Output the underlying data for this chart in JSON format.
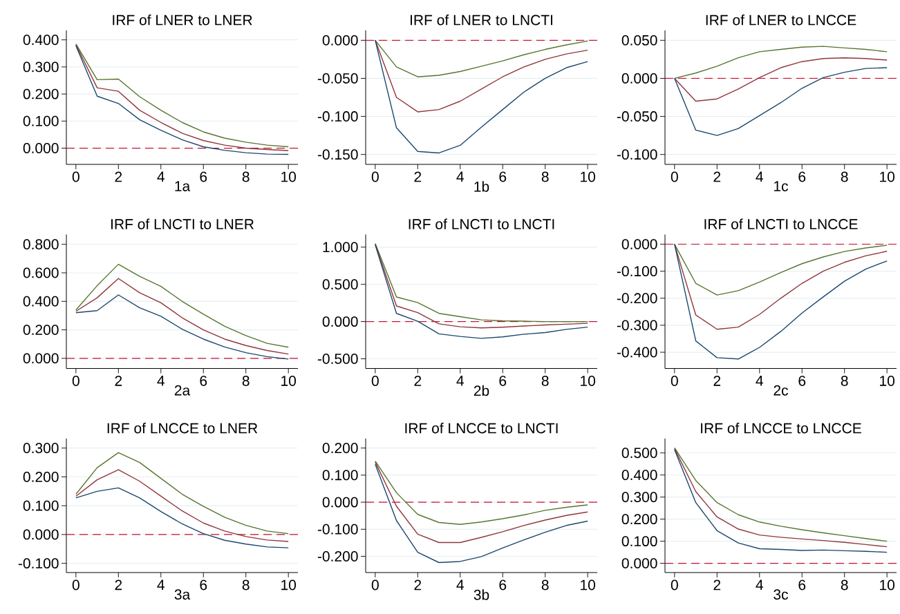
{
  "chart_data": [
    {
      "type": "line",
      "title": "IRF of LNER to LNER",
      "xlabel": "1a",
      "x": [
        0,
        1,
        2,
        3,
        4,
        5,
        6,
        7,
        8,
        9,
        10
      ],
      "xlim": [
        -0.45,
        10.45
      ],
      "xticks": [
        0,
        2,
        4,
        6,
        8,
        10
      ],
      "ylim": [
        -0.06,
        0.435
      ],
      "yticks": [
        {
          "value": 0,
          "label": "0.000"
        },
        {
          "value": 0.1,
          "label": "0.100"
        },
        {
          "value": 0.2,
          "label": "0.200"
        },
        {
          "value": 0.3,
          "label": "0.300"
        },
        {
          "value": 0.4,
          "label": "0.400"
        }
      ],
      "grid": "y",
      "marker": "none",
      "ref_lines": [
        {
          "axis": "y",
          "value": 0,
          "color": "#c8102e",
          "line_style": "dashed"
        }
      ],
      "series": [
        {
          "color": "#55752f",
          "values": [
            0.385,
            0.253,
            0.255,
            0.19,
            0.14,
            0.095,
            0.06,
            0.037,
            0.022,
            0.011,
            0.005
          ]
        },
        {
          "color": "#90353b",
          "values": [
            0.382,
            0.223,
            0.21,
            0.14,
            0.095,
            0.055,
            0.028,
            0.011,
            0.0,
            -0.005,
            -0.009
          ]
        },
        {
          "color": "#1a476f",
          "values": [
            0.378,
            0.192,
            0.165,
            0.105,
            0.066,
            0.031,
            0.005,
            -0.008,
            -0.017,
            -0.022,
            -0.023
          ]
        }
      ]
    },
    {
      "type": "line",
      "title": "IRF of LNER to LNCTI",
      "xlabel": "1b",
      "x": [
        0,
        1,
        2,
        3,
        4,
        5,
        6,
        7,
        8,
        9,
        10
      ],
      "xlim": [
        -0.45,
        10.45
      ],
      "xticks": [
        0,
        2,
        4,
        6,
        8,
        10
      ],
      "ylim": [
        -0.163,
        0.013
      ],
      "yticks": [
        {
          "value": -0.15,
          "label": "-0.150"
        },
        {
          "value": -0.1,
          "label": "-0.100"
        },
        {
          "value": -0.05,
          "label": "-0.050"
        },
        {
          "value": 0,
          "label": "0.000"
        }
      ],
      "grid": "y",
      "marker": "none",
      "ref_lines": [
        {
          "axis": "y",
          "value": 0,
          "color": "#c8102e",
          "line_style": "dashed"
        }
      ],
      "series": [
        {
          "color": "#55752f",
          "values": [
            0,
            -0.035,
            -0.048,
            -0.046,
            -0.041,
            -0.034,
            -0.027,
            -0.019,
            -0.012,
            -0.006,
            -0.001
          ]
        },
        {
          "color": "#90353b",
          "values": [
            0,
            -0.075,
            -0.094,
            -0.091,
            -0.08,
            -0.064,
            -0.048,
            -0.035,
            -0.025,
            -0.018,
            -0.013
          ]
        },
        {
          "color": "#1a476f",
          "values": [
            0,
            -0.115,
            -0.146,
            -0.148,
            -0.138,
            -0.114,
            -0.091,
            -0.068,
            -0.05,
            -0.036,
            -0.028
          ]
        }
      ]
    },
    {
      "type": "line",
      "title": "IRF of LNER to LNCCE",
      "xlabel": "1c",
      "x": [
        0,
        1,
        2,
        3,
        4,
        5,
        6,
        7,
        8,
        9,
        10
      ],
      "xlim": [
        -0.45,
        10.45
      ],
      "xticks": [
        0,
        2,
        4,
        6,
        8,
        10
      ],
      "ylim": [
        -0.113,
        0.063
      ],
      "yticks": [
        {
          "value": -0.1,
          "label": "-0.100"
        },
        {
          "value": -0.05,
          "label": "-0.050"
        },
        {
          "value": 0,
          "label": "0.000"
        },
        {
          "value": 0.05,
          "label": "0.050"
        }
      ],
      "grid": "y",
      "marker": "none",
      "ref_lines": [
        {
          "axis": "y",
          "value": 0,
          "color": "#c8102e",
          "line_style": "dashed"
        }
      ],
      "series": [
        {
          "color": "#55752f",
          "values": [
            0,
            0.007,
            0.016,
            0.027,
            0.035,
            0.038,
            0.041,
            0.042,
            0.04,
            0.038,
            0.035
          ]
        },
        {
          "color": "#90353b",
          "values": [
            0,
            -0.03,
            -0.027,
            -0.014,
            0.001,
            0.014,
            0.022,
            0.026,
            0.027,
            0.026,
            0.024
          ]
        },
        {
          "color": "#1a476f",
          "values": [
            0,
            -0.068,
            -0.075,
            -0.066,
            -0.049,
            -0.032,
            -0.013,
            0.001,
            0.008,
            0.013,
            0.014
          ]
        }
      ]
    },
    {
      "type": "line",
      "title": "IRF of LNCTI to LNER",
      "xlabel": "2a",
      "x": [
        0,
        1,
        2,
        3,
        4,
        5,
        6,
        7,
        8,
        9,
        10
      ],
      "xlim": [
        -0.45,
        10.45
      ],
      "xticks": [
        0,
        2,
        4,
        6,
        8,
        10
      ],
      "ylim": [
        -0.071,
        0.869
      ],
      "yticks": [
        {
          "value": 0,
          "label": "0.000"
        },
        {
          "value": 0.2,
          "label": "0.200"
        },
        {
          "value": 0.4,
          "label": "0.400"
        },
        {
          "value": 0.6,
          "label": "0.600"
        },
        {
          "value": 0.8,
          "label": "0.800"
        }
      ],
      "grid": "y",
      "marker": "none",
      "ref_lines": [
        {
          "axis": "y",
          "value": 0,
          "color": "#c8102e",
          "line_style": "dashed"
        }
      ],
      "series": [
        {
          "color": "#55752f",
          "values": [
            0.34,
            0.51,
            0.66,
            0.575,
            0.505,
            0.4,
            0.31,
            0.225,
            0.16,
            0.105,
            0.078
          ]
        },
        {
          "color": "#90353b",
          "values": [
            0.33,
            0.425,
            0.56,
            0.46,
            0.39,
            0.285,
            0.2,
            0.135,
            0.09,
            0.055,
            0.03
          ]
        },
        {
          "color": "#1a476f",
          "values": [
            0.32,
            0.335,
            0.445,
            0.355,
            0.295,
            0.205,
            0.135,
            0.08,
            0.04,
            0.012,
            -0.005
          ]
        }
      ]
    },
    {
      "type": "line",
      "title": "IRF of LNCTI to LNCTI",
      "xlabel": "2b",
      "x": [
        0,
        1,
        2,
        3,
        4,
        5,
        6,
        7,
        8,
        9,
        10
      ],
      "xlim": [
        -0.45,
        10.45
      ],
      "xticks": [
        0,
        2,
        4,
        6,
        8,
        10
      ],
      "ylim": [
        -0.63,
        1.17
      ],
      "yticks": [
        {
          "value": -0.5,
          "label": "-0.500"
        },
        {
          "value": 0,
          "label": "0.000"
        },
        {
          "value": 0.5,
          "label": "0.500"
        },
        {
          "value": 1,
          "label": "1.000"
        }
      ],
      "grid": "y",
      "marker": "none",
      "ref_lines": [
        {
          "axis": "y",
          "value": 0,
          "color": "#c8102e",
          "line_style": "dashed"
        }
      ],
      "series": [
        {
          "color": "#55752f",
          "values": [
            1.05,
            0.33,
            0.255,
            0.11,
            0.066,
            0.023,
            0.01,
            0.005,
            0.0,
            0.0,
            0.0
          ]
        },
        {
          "color": "#90353b",
          "values": [
            1.04,
            0.21,
            0.12,
            -0.03,
            -0.07,
            -0.085,
            -0.075,
            -0.06,
            -0.045,
            -0.035,
            -0.023
          ]
        },
        {
          "color": "#1a476f",
          "values": [
            1.03,
            0.11,
            0.005,
            -0.165,
            -0.2,
            -0.225,
            -0.205,
            -0.17,
            -0.148,
            -0.105,
            -0.074
          ]
        }
      ]
    },
    {
      "type": "line",
      "title": "IRF of LNCTI to LNCCE",
      "xlabel": "2c",
      "x": [
        0,
        1,
        2,
        3,
        4,
        5,
        6,
        7,
        8,
        9,
        10
      ],
      "xlim": [
        -0.45,
        10.45
      ],
      "xticks": [
        0,
        2,
        4,
        6,
        8,
        10
      ],
      "ylim": [
        -0.46,
        0.036
      ],
      "yticks": [
        {
          "value": -0.4,
          "label": "-0.400"
        },
        {
          "value": -0.3,
          "label": "-0.300"
        },
        {
          "value": -0.2,
          "label": "-0.200"
        },
        {
          "value": -0.1,
          "label": "-0.100"
        },
        {
          "value": 0,
          "label": "0.000"
        }
      ],
      "grid": "y",
      "marker": "none",
      "ref_lines": [
        {
          "axis": "y",
          "value": 0,
          "color": "#c8102e",
          "line_style": "dashed"
        }
      ],
      "series": [
        {
          "color": "#55752f",
          "values": [
            0,
            -0.145,
            -0.188,
            -0.172,
            -0.14,
            -0.105,
            -0.072,
            -0.047,
            -0.027,
            -0.014,
            -0.004
          ]
        },
        {
          "color": "#90353b",
          "values": [
            0,
            -0.262,
            -0.315,
            -0.307,
            -0.26,
            -0.2,
            -0.145,
            -0.1,
            -0.067,
            -0.043,
            -0.026
          ]
        },
        {
          "color": "#1a476f",
          "values": [
            0,
            -0.358,
            -0.42,
            -0.425,
            -0.382,
            -0.323,
            -0.255,
            -0.195,
            -0.137,
            -0.092,
            -0.062
          ]
        }
      ]
    },
    {
      "type": "line",
      "title": "IRF of LNCCE to LNER",
      "xlabel": "3a",
      "x": [
        0,
        1,
        2,
        3,
        4,
        5,
        6,
        7,
        8,
        9,
        10
      ],
      "xlim": [
        -0.45,
        10.45
      ],
      "xticks": [
        0,
        2,
        4,
        6,
        8,
        10
      ],
      "ylim": [
        -0.132,
        0.333
      ],
      "yticks": [
        {
          "value": -0.1,
          "label": "-0.100"
        },
        {
          "value": 0,
          "label": "0.000"
        },
        {
          "value": 0.1,
          "label": "0.100"
        },
        {
          "value": 0.2,
          "label": "0.200"
        },
        {
          "value": 0.3,
          "label": "0.300"
        }
      ],
      "grid": "y",
      "marker": "none",
      "ref_lines": [
        {
          "axis": "y",
          "value": 0,
          "color": "#c8102e",
          "line_style": "dashed"
        }
      ],
      "series": [
        {
          "color": "#55752f",
          "values": [
            0.14,
            0.232,
            0.284,
            0.25,
            0.195,
            0.14,
            0.098,
            0.06,
            0.032,
            0.012,
            0.003
          ]
        },
        {
          "color": "#90353b",
          "values": [
            0.133,
            0.19,
            0.225,
            0.185,
            0.133,
            0.082,
            0.04,
            0.012,
            -0.007,
            -0.019,
            -0.024
          ]
        },
        {
          "color": "#1a476f",
          "values": [
            0.127,
            0.15,
            0.162,
            0.127,
            0.08,
            0.037,
            0.003,
            -0.02,
            -0.033,
            -0.043,
            -0.046
          ]
        }
      ]
    },
    {
      "type": "line",
      "title": "IRF of LNCCE to LNCTI",
      "xlabel": "3b",
      "x": [
        0,
        1,
        2,
        3,
        4,
        5,
        6,
        7,
        8,
        9,
        10
      ],
      "xlim": [
        -0.45,
        10.45
      ],
      "xticks": [
        0,
        2,
        4,
        6,
        8,
        10
      ],
      "ylim": [
        -0.26,
        0.235
      ],
      "yticks": [
        {
          "value": -0.2,
          "label": "-0.200"
        },
        {
          "value": -0.1,
          "label": "-0.100"
        },
        {
          "value": 0,
          "label": "0.000"
        },
        {
          "value": 0.1,
          "label": "0.100"
        },
        {
          "value": 0.2,
          "label": "0.200"
        }
      ],
      "grid": "y",
      "marker": "none",
      "ref_lines": [
        {
          "axis": "y",
          "value": 0,
          "color": "#c8102e",
          "line_style": "dashed"
        }
      ],
      "series": [
        {
          "color": "#55752f",
          "values": [
            0.152,
            0.035,
            -0.045,
            -0.075,
            -0.082,
            -0.073,
            -0.061,
            -0.047,
            -0.03,
            -0.019,
            -0.01
          ]
        },
        {
          "color": "#90353b",
          "values": [
            0.148,
            -0.015,
            -0.118,
            -0.149,
            -0.149,
            -0.13,
            -0.109,
            -0.086,
            -0.066,
            -0.049,
            -0.036
          ]
        },
        {
          "color": "#1a476f",
          "values": [
            0.14,
            -0.068,
            -0.185,
            -0.223,
            -0.219,
            -0.201,
            -0.169,
            -0.139,
            -0.111,
            -0.086,
            -0.07
          ]
        }
      ]
    },
    {
      "type": "line",
      "title": "IRF of LNCCE to LNCCE",
      "xlabel": "3c",
      "x": [
        0,
        1,
        2,
        3,
        4,
        5,
        6,
        7,
        8,
        9,
        10
      ],
      "xlim": [
        -0.45,
        10.45
      ],
      "xticks": [
        0,
        2,
        4,
        6,
        8,
        10
      ],
      "ylim": [
        -0.042,
        0.565
      ],
      "yticks": [
        {
          "value": 0,
          "label": "0.000"
        },
        {
          "value": 0.1,
          "label": "0.100"
        },
        {
          "value": 0.2,
          "label": "0.200"
        },
        {
          "value": 0.3,
          "label": "0.300"
        },
        {
          "value": 0.4,
          "label": "0.400"
        },
        {
          "value": 0.5,
          "label": "0.500"
        }
      ],
      "grid": "y",
      "marker": "none",
      "ref_lines": [
        {
          "axis": "y",
          "value": 0,
          "color": "#c8102e",
          "line_style": "dashed"
        }
      ],
      "series": [
        {
          "color": "#55752f",
          "values": [
            0.523,
            0.375,
            0.275,
            0.22,
            0.187,
            0.168,
            0.152,
            0.138,
            0.125,
            0.112,
            0.1
          ]
        },
        {
          "color": "#90353b",
          "values": [
            0.52,
            0.325,
            0.21,
            0.155,
            0.128,
            0.118,
            0.11,
            0.103,
            0.095,
            0.085,
            0.075
          ]
        },
        {
          "color": "#1a476f",
          "values": [
            0.515,
            0.275,
            0.148,
            0.092,
            0.066,
            0.063,
            0.058,
            0.06,
            0.057,
            0.054,
            0.05
          ]
        }
      ]
    }
  ]
}
